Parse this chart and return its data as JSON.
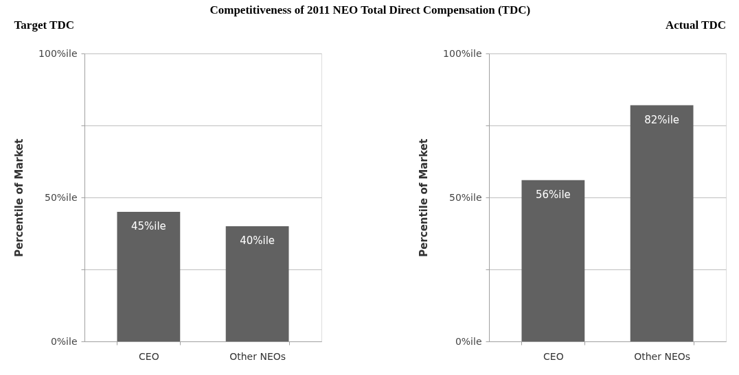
{
  "chart_data": [
    {
      "type": "bar",
      "title": "Competitiveness of 2011 NEO Total Direct Compensation (TDC)",
      "subtitle": "Target TDC",
      "ylabel": "Percentile of Market",
      "categories": [
        "CEO",
        "Other NEOs"
      ],
      "values": [
        45,
        40
      ],
      "value_labels": [
        "45%ile",
        "40%ile"
      ],
      "color": "#616161",
      "ylim": [
        0,
        100
      ],
      "yticks": [
        {
          "value": 0,
          "label": "0%ile"
        },
        {
          "value": 25,
          "label": null
        },
        {
          "value": 50,
          "label": "50%ile"
        },
        {
          "value": 75,
          "label": null
        },
        {
          "value": 100,
          "label": "100%ile"
        }
      ],
      "grid": "y"
    },
    {
      "type": "bar",
      "subtitle": "Actual TDC",
      "ylabel": "Percentile of Market",
      "categories": [
        "CEO",
        "Other NEOs"
      ],
      "values": [
        56,
        82
      ],
      "value_labels": [
        "56%ile",
        "82%ile"
      ],
      "color": "#616161",
      "ylim": [
        0,
        100
      ],
      "yticks": [
        {
          "value": 0,
          "label": "0%ile"
        },
        {
          "value": 25,
          "label": null
        },
        {
          "value": 50,
          "label": "50%ile"
        },
        {
          "value": 75,
          "label": null
        },
        {
          "value": 100,
          "label": "100%ile"
        }
      ],
      "grid": "y"
    }
  ]
}
